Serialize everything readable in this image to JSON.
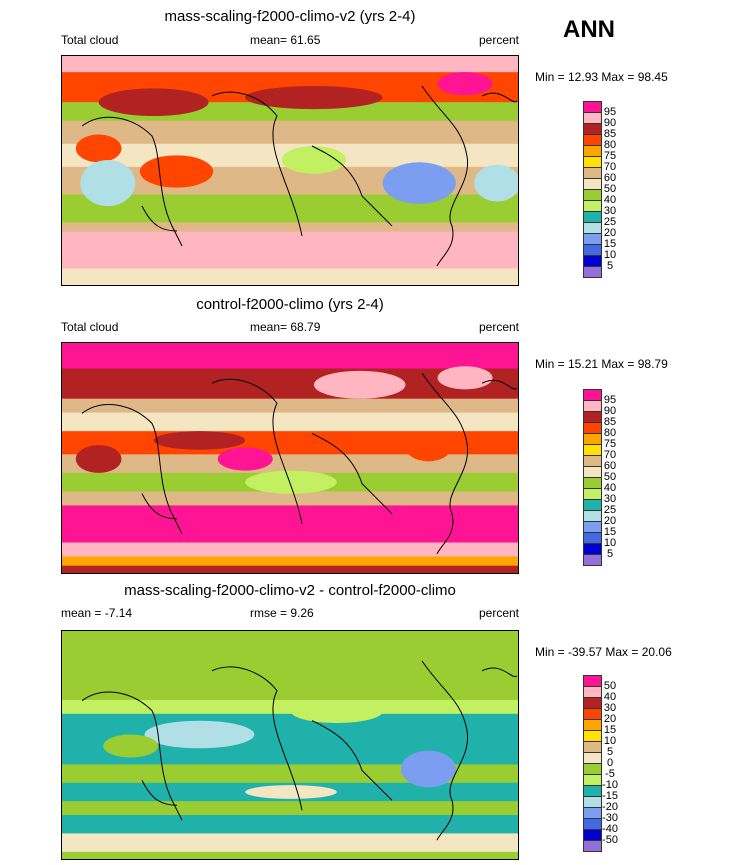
{
  "season": "ANN",
  "panels": [
    {
      "title": "mass-scaling-f2000-climo-v2 (yrs 2-4)",
      "left": "Total cloud",
      "center": "mean=  61.65",
      "units": "percent",
      "minmax": "Min =  12.93 Max =  98.45",
      "levels": [
        "95",
        "90",
        "85",
        "80",
        "75",
        "70",
        "60",
        "50",
        "40",
        "30",
        "25",
        "20",
        "15",
        "10",
        "5"
      ]
    },
    {
      "title": "control-f2000-climo (yrs 2-4)",
      "left": "Total cloud",
      "center": "mean=  68.79",
      "units": "percent",
      "minmax": "Min =  15.21 Max =  98.79",
      "levels": [
        "95",
        "90",
        "85",
        "80",
        "75",
        "70",
        "60",
        "50",
        "40",
        "30",
        "25",
        "20",
        "15",
        "10",
        "5"
      ]
    },
    {
      "title": "mass-scaling-f2000-climo-v2 - control-f2000-climo",
      "left": "mean =  -7.14",
      "center": "rmse =   9.26",
      "units": "percent",
      "minmax": "Min = -39.57 Max =  20.06",
      "levels": [
        "50",
        "40",
        "30",
        "20",
        "15",
        "10",
        "5",
        "0",
        "-5",
        "-10",
        "-15",
        "-20",
        "-30",
        "-40",
        "-50"
      ]
    }
  ],
  "colors": [
    "#ff1493",
    "#ffb6c1",
    "#b22222",
    "#ff4500",
    "#ffa500",
    "#ffe000",
    "#deb887",
    "#f5e6c3",
    "#9acd32",
    "#c2f061",
    "#20b2aa",
    "#b0e0e6",
    "#7b9ef0",
    "#4169e1",
    "#0000cd",
    "#9370db"
  ]
}
